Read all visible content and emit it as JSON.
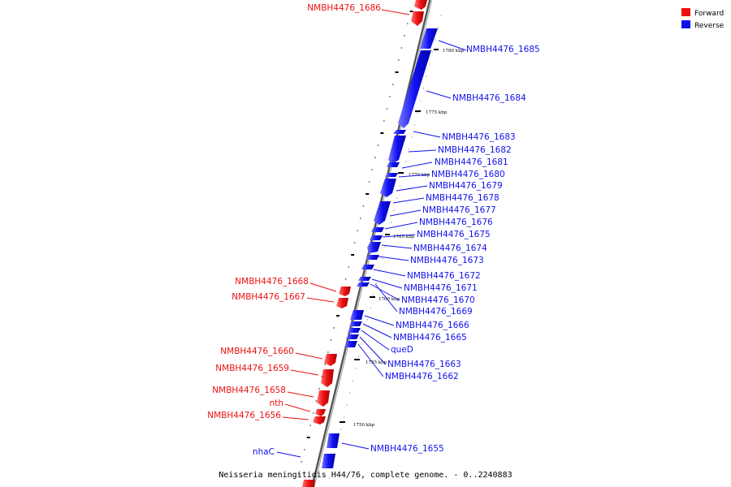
{
  "caption": "Neisseria meningitidis H44/76, complete genome. - 0..2240883",
  "legend": {
    "forward": {
      "label": "Forward",
      "color": "#ee1111"
    },
    "reverse": {
      "label": "Reverse",
      "color": "#1111ee"
    }
  },
  "scale_labels": [
    "1780 kbp",
    "1775 kbp",
    "1770 kbp",
    "1765 kbp",
    "1760 kbp",
    "1755 kbp",
    "1750 kbp"
  ],
  "genes_forward": [
    {
      "label": "NMBH4476_1686"
    },
    {
      "label": "NMBH4476_1668"
    },
    {
      "label": "NMBH4476_1667"
    },
    {
      "label": "NMBH4476_1660"
    },
    {
      "label": "NMBH4476_1659"
    },
    {
      "label": "NMBH4476_1658"
    },
    {
      "label": "nth"
    },
    {
      "label": "NMBH4476_1656"
    }
  ],
  "genes_reverse": [
    {
      "label": "NMBH4476_1685"
    },
    {
      "label": "NMBH4476_1684"
    },
    {
      "label": "NMBH4476_1683"
    },
    {
      "label": "NMBH4476_1682"
    },
    {
      "label": "NMBH4476_1681"
    },
    {
      "label": "NMBH4476_1680"
    },
    {
      "label": "NMBH4476_1679"
    },
    {
      "label": "NMBH4476_1678"
    },
    {
      "label": "NMBH4476_1677"
    },
    {
      "label": "NMBH4476_1676"
    },
    {
      "label": "NMBH4476_1675"
    },
    {
      "label": "NMBH4476_1674"
    },
    {
      "label": "NMBH4476_1673"
    },
    {
      "label": "NMBH4476_1672"
    },
    {
      "label": "NMBH4476_1671"
    },
    {
      "label": "NMBH4476_1670"
    },
    {
      "label": "NMBH4476_1669"
    },
    {
      "label": "NMBH4476_1666"
    },
    {
      "label": "NMBH4476_1665"
    },
    {
      "label": "queD"
    },
    {
      "label": "NMBH4476_1663"
    },
    {
      "label": "NMBH4476_1662"
    },
    {
      "label": "NMBH4476_1655"
    },
    {
      "label": "nhaC"
    }
  ]
}
